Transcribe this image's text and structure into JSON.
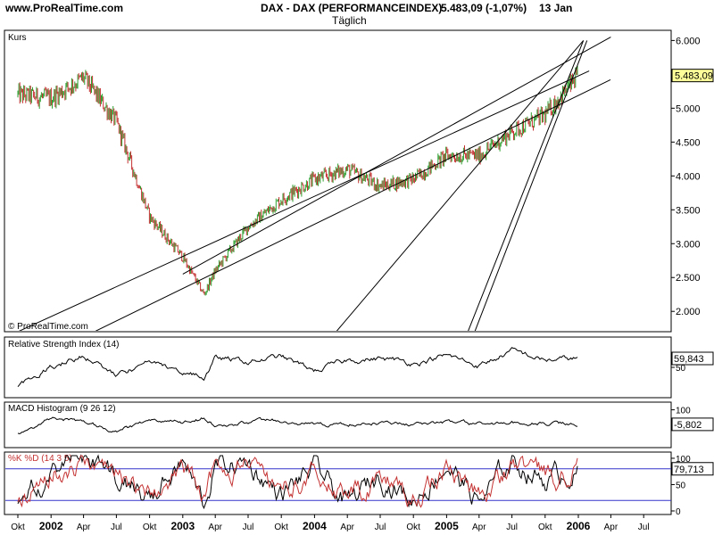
{
  "header": {
    "site": "www.ProRealTime.com",
    "instrument": "DAX - DAX (PERFORMANCEINDEX)",
    "quote": "5.483,09 (-1,07%)",
    "date": "13 Jan",
    "interval": "Täglich"
  },
  "colors": {
    "up": "#2f9e2f",
    "down": "#c43232",
    "trend": "#000000",
    "bands": "#3333cc",
    "price_tag": "#ffff99"
  },
  "chart_data": [
    {
      "type": "line",
      "panel": "price",
      "title": "Kurs",
      "watermark": "© ProRealTime.com",
      "y_ticks": [
        "6.000",
        "5.500",
        "5.000",
        "4.500",
        "4.000",
        "3.500",
        "3.000",
        "2.500",
        "2.000"
      ],
      "ylim": [
        1700,
        6150
      ],
      "last_value_label": "5.483,09",
      "x": [
        "2001-10",
        "2002-01",
        "2002-04",
        "2002-07",
        "2002-10",
        "2003-01",
        "2003-03",
        "2003-04",
        "2003-07",
        "2003-10",
        "2004-01",
        "2004-04",
        "2004-07",
        "2004-10",
        "2005-01",
        "2005-04",
        "2005-07",
        "2005-10",
        "2006-01"
      ],
      "series": [
        {
          "values": [
            5200,
            5150,
            5450,
            4800,
            3400,
            2800,
            2250,
            2600,
            3250,
            3650,
            3950,
            4100,
            3850,
            3950,
            4300,
            4300,
            4650,
            4900,
            5483
          ]
        }
      ],
      "trend_lines": [
        {
          "from": [
            "2001-10-01",
            1700
          ],
          "to": [
            "2006-01-31",
            5550
          ]
        },
        {
          "from": [
            "2002-05-01",
            1700
          ],
          "to": [
            "2006-03-31",
            5420
          ]
        },
        {
          "from": [
            "2003-01-01",
            2550
          ],
          "to": [
            "2006-04-01",
            6050
          ]
        },
        {
          "from": [
            "2004-03-01",
            1700
          ],
          "to": [
            "2006-01-15",
            6000
          ]
        },
        {
          "from": [
            "2005-03-01",
            1700
          ],
          "to": [
            "2006-01-15",
            6000
          ]
        },
        {
          "from": [
            "2005-03-20",
            1700
          ],
          "to": [
            "2006-01-25",
            6000
          ]
        }
      ]
    },
    {
      "type": "line",
      "panel": "indicator",
      "title": "Relative Strength Index (14)",
      "last_value_label": "59,843",
      "y_ticks": [
        "50"
      ],
      "ylim": [
        20,
        80
      ],
      "series": [
        {
          "values": [
            30,
            50,
            64,
            40,
            55,
            45,
            38,
            60,
            56,
            62,
            46,
            58,
            60,
            55,
            63,
            52,
            68,
            58,
            60
          ]
        }
      ]
    },
    {
      "type": "line",
      "panel": "indicator",
      "title": "MACD Histogram (9 26 12)",
      "last_value_label": "-5,802",
      "y_ticks": [
        "100",
        "0"
      ],
      "ylim": [
        -150,
        130
      ],
      "series": [
        {
          "values": [
            -80,
            40,
            20,
            -60,
            30,
            0,
            40,
            -20,
            10,
            20,
            -10,
            -5,
            10,
            0,
            10,
            -10,
            5,
            0,
            -6
          ]
        }
      ]
    },
    {
      "type": "line",
      "panel": "indicator",
      "title": "%K  %D (14 3 5)",
      "last_value_label": "79,713",
      "y_ticks": [
        "100",
        "50",
        "0"
      ],
      "ylim": [
        0,
        105
      ],
      "bands": [
        20,
        80
      ],
      "series": [
        {
          "name": "%K",
          "values": [
            5,
            80,
            95,
            60,
            20,
            90,
            10,
            85,
            90,
            30,
            80,
            10,
            70,
            20,
            90,
            15,
            95,
            60,
            80
          ]
        },
        {
          "name": "%D",
          "values": [
            10,
            70,
            90,
            65,
            25,
            85,
            15,
            80,
            85,
            35,
            75,
            15,
            65,
            25,
            85,
            20,
            90,
            62,
            80
          ]
        }
      ]
    }
  ],
  "x_axis": [
    {
      "label": "Okt",
      "x": "2001-10-01",
      "year": false
    },
    {
      "label": "2002",
      "x": "2002-01-01",
      "year": true
    },
    {
      "label": "Apr",
      "x": "2002-04-01",
      "year": false
    },
    {
      "label": "Jul",
      "x": "2002-07-01",
      "year": false
    },
    {
      "label": "Okt",
      "x": "2002-10-01",
      "year": false
    },
    {
      "label": "2003",
      "x": "2003-01-01",
      "year": true
    },
    {
      "label": "Apr",
      "x": "2003-04-01",
      "year": false
    },
    {
      "label": "Jul",
      "x": "2003-07-01",
      "year": false
    },
    {
      "label": "Okt",
      "x": "2003-10-01",
      "year": false
    },
    {
      "label": "2004",
      "x": "2004-01-01",
      "year": true
    },
    {
      "label": "Apr",
      "x": "2004-04-01",
      "year": false
    },
    {
      "label": "Jul",
      "x": "2004-07-01",
      "year": false
    },
    {
      "label": "Okt",
      "x": "2004-10-01",
      "year": false
    },
    {
      "label": "2005",
      "x": "2005-01-01",
      "year": true
    },
    {
      "label": "Apr",
      "x": "2005-04-01",
      "year": false
    },
    {
      "label": "Jul",
      "x": "2005-07-01",
      "year": false
    },
    {
      "label": "Okt",
      "x": "2005-10-01",
      "year": false
    },
    {
      "label": "2006",
      "x": "2006-01-01",
      "year": true
    },
    {
      "label": "Apr",
      "x": "2006-04-01",
      "year": false
    },
    {
      "label": "Jul",
      "x": "2006-07-01",
      "year": false
    }
  ]
}
